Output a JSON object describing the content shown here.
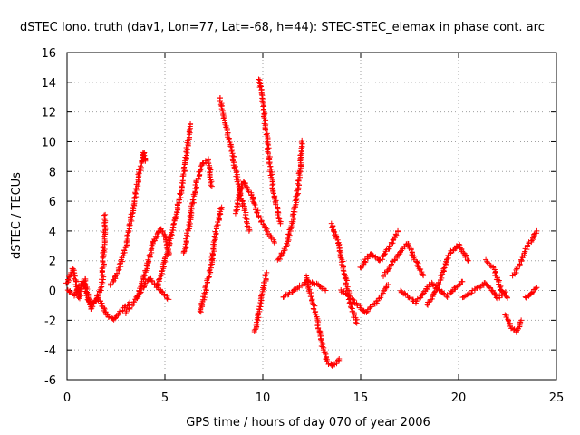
{
  "chart_data": {
    "type": "scatter",
    "title": "dSTEC Iono. truth (dav1, Lon=77, Lat=-68, h=44): STEC-STEC_elemax in phase cont. arc",
    "xlabel": "GPS time / hours of day 070 of year 2006",
    "ylabel": "dSTEC  / TECUs",
    "xlim": [
      0,
      25
    ],
    "ylim": [
      -6,
      16
    ],
    "x_ticks": [
      0,
      5,
      10,
      15,
      20,
      25
    ],
    "y_ticks": [
      -6,
      -4,
      -2,
      0,
      2,
      4,
      6,
      8,
      10,
      12,
      14,
      16
    ],
    "grid": true,
    "marker": "plus",
    "color": "#ff0000",
    "series": [
      {
        "x": [
          0.0,
          0.3,
          0.6,
          0.9,
          1.2,
          1.5,
          1.8,
          1.95
        ],
        "y": [
          0.5,
          1.5,
          -0.5,
          0.8,
          -1.2,
          -0.6,
          0.4,
          5.1
        ]
      },
      {
        "x": [
          0.0,
          0.4,
          0.8,
          1.2,
          1.6,
          2.0,
          2.4,
          2.8,
          3.2
        ],
        "y": [
          0.0,
          -0.3,
          0.6,
          -1.0,
          -0.5,
          -1.6,
          -2.0,
          -1.3,
          -0.8
        ]
      },
      {
        "x": [
          2.2,
          2.6,
          3.0,
          3.3,
          3.6,
          3.8,
          3.9,
          4.0
        ],
        "y": [
          0.3,
          1.2,
          3.0,
          5.0,
          7.2,
          8.6,
          9.3,
          8.7
        ]
      },
      {
        "x": [
          3.0,
          3.6,
          4.2,
          4.8,
          5.2
        ],
        "y": [
          -1.5,
          -0.4,
          0.8,
          0.0,
          -0.6
        ]
      },
      {
        "x": [
          3.6,
          4.0,
          4.4,
          4.8,
          5.0,
          5.2
        ],
        "y": [
          -0.5,
          1.2,
          3.2,
          4.2,
          3.6,
          2.4
        ]
      },
      {
        "x": [
          4.6,
          5.0,
          5.4,
          5.8,
          6.1,
          6.3
        ],
        "y": [
          0.2,
          2.0,
          4.0,
          6.5,
          9.2,
          11.2
        ]
      },
      {
        "x": [
          6.0,
          6.3,
          6.6,
          6.9,
          7.2,
          7.4
        ],
        "y": [
          2.5,
          5.0,
          7.2,
          8.5,
          8.8,
          7.0
        ]
      },
      {
        "x": [
          6.8,
          7.1,
          7.4,
          7.6,
          7.9
        ],
        "y": [
          -1.5,
          0.2,
          2.0,
          4.0,
          5.6
        ]
      },
      {
        "x": [
          7.8,
          8.1,
          8.4,
          8.7,
          9.0,
          9.3
        ],
        "y": [
          13.0,
          11.2,
          9.5,
          7.5,
          5.8,
          4.0
        ]
      },
      {
        "x": [
          8.6,
          9.0,
          9.4,
          9.8,
          10.2,
          10.6
        ],
        "y": [
          5.2,
          7.4,
          6.5,
          5.0,
          4.0,
          3.2
        ]
      },
      {
        "x": [
          9.8,
          9.95,
          10.2,
          10.4,
          10.6,
          10.9
        ],
        "y": [
          14.2,
          13.0,
          10.5,
          8.0,
          6.2,
          4.5
        ]
      },
      {
        "x": [
          9.6,
          9.8,
          10.0,
          10.2
        ],
        "y": [
          -2.8,
          -1.5,
          0.0,
          1.2
        ]
      },
      {
        "x": [
          10.8,
          11.2,
          11.5,
          11.7,
          11.9,
          12.0
        ],
        "y": [
          2.0,
          3.0,
          4.5,
          6.0,
          8.0,
          10.1
        ]
      },
      {
        "x": [
          11.0,
          11.4,
          11.8,
          12.3,
          12.8,
          13.2
        ],
        "y": [
          -0.4,
          -0.2,
          0.2,
          0.6,
          0.4,
          0.0
        ]
      },
      {
        "x": [
          12.2,
          12.6,
          13.0,
          13.3,
          13.6,
          13.9
        ],
        "y": [
          1.0,
          -1.0,
          -3.5,
          -4.8,
          -5.1,
          -4.6
        ]
      },
      {
        "x": [
          13.5,
          13.9,
          14.2,
          14.5,
          14.8
        ],
        "y": [
          4.5,
          3.0,
          1.0,
          -1.0,
          -2.2
        ]
      },
      {
        "x": [
          14.0,
          14.6,
          15.2,
          15.8,
          16.4
        ],
        "y": [
          0.0,
          -0.6,
          -1.5,
          -0.8,
          0.4
        ]
      },
      {
        "x": [
          15.0,
          15.5,
          16.0,
          16.5,
          16.9
        ],
        "y": [
          1.5,
          2.5,
          2.0,
          3.0,
          4.0
        ]
      },
      {
        "x": [
          16.2,
          16.8,
          17.4,
          17.8,
          18.2
        ],
        "y": [
          1.0,
          2.2,
          3.2,
          2.0,
          1.0
        ]
      },
      {
        "x": [
          17.0,
          17.8,
          18.6,
          19.4,
          20.2
        ],
        "y": [
          0.0,
          -0.8,
          0.5,
          -0.4,
          0.6
        ]
      },
      {
        "x": [
          18.4,
          19.0,
          19.5,
          20.0,
          20.5
        ],
        "y": [
          -1.0,
          0.5,
          2.4,
          3.1,
          2.0
        ]
      },
      {
        "x": [
          20.2,
          20.8,
          21.4,
          22.0,
          22.4
        ],
        "y": [
          -0.5,
          0.0,
          0.5,
          -0.5,
          -0.1
        ]
      },
      {
        "x": [
          21.4,
          21.8,
          22.2,
          22.5
        ],
        "y": [
          2.0,
          1.5,
          0.0,
          -0.5
        ]
      },
      {
        "x": [
          22.4,
          22.7,
          23.0,
          23.2
        ],
        "y": [
          -1.6,
          -2.5,
          -2.8,
          -2.0
        ]
      },
      {
        "x": [
          22.8,
          23.2,
          23.5,
          23.8,
          24.0
        ],
        "y": [
          1.0,
          2.0,
          3.0,
          3.5,
          4.0
        ]
      },
      {
        "x": [
          23.4,
          23.7,
          24.0
        ],
        "y": [
          -0.5,
          -0.2,
          0.2
        ]
      }
    ]
  }
}
